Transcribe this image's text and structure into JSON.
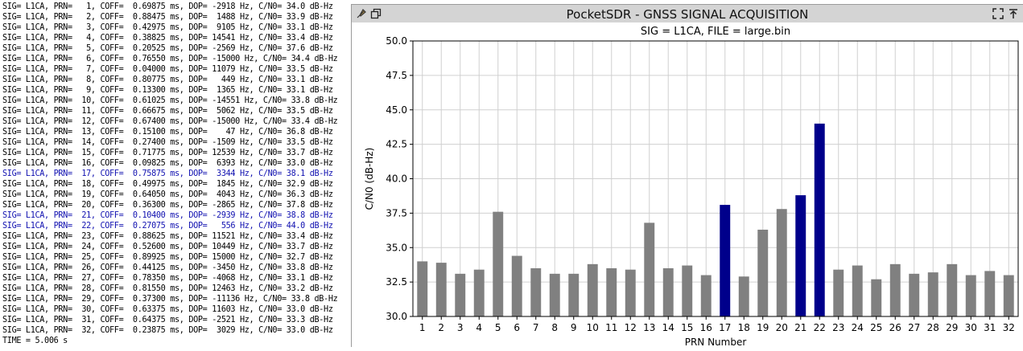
{
  "terminal": {
    "lines": [
      "SIG= L1CA, PRN=   1, COFF=  0.69875 ms, DOP= -2918 Hz, C/N0= 34.0 dB-Hz",
      "SIG= L1CA, PRN=   2, COFF=  0.88475 ms, DOP=  1488 Hz, C/N0= 33.9 dB-Hz",
      "SIG= L1CA, PRN=   3, COFF=  0.42975 ms, DOP=  9105 Hz, C/N0= 33.1 dB-Hz",
      "SIG= L1CA, PRN=   4, COFF=  0.38825 ms, DOP= 14541 Hz, C/N0= 33.4 dB-Hz",
      "SIG= L1CA, PRN=   5, COFF=  0.20525 ms, DOP= -2569 Hz, C/N0= 37.6 dB-Hz",
      "SIG= L1CA, PRN=   6, COFF=  0.76550 ms, DOP= -15000 Hz, C/N0= 34.4 dB-Hz",
      "SIG= L1CA, PRN=   7, COFF=  0.04000 ms, DOP= 11079 Hz, C/N0= 33.5 dB-Hz",
      "SIG= L1CA, PRN=   8, COFF=  0.80775 ms, DOP=   449 Hz, C/N0= 33.1 dB-Hz",
      "SIG= L1CA, PRN=   9, COFF=  0.13300 ms, DOP=  1365 Hz, C/N0= 33.1 dB-Hz",
      "SIG= L1CA, PRN=  10, COFF=  0.61025 ms, DOP= -14551 Hz, C/N0= 33.8 dB-Hz",
      "SIG= L1CA, PRN=  11, COFF=  0.66675 ms, DOP=  5062 Hz, C/N0= 33.5 dB-Hz",
      "SIG= L1CA, PRN=  12, COFF=  0.67400 ms, DOP= -15000 Hz, C/N0= 33.4 dB-Hz",
      "SIG= L1CA, PRN=  13, COFF=  0.15100 ms, DOP=    47 Hz, C/N0= 36.8 dB-Hz",
      "SIG= L1CA, PRN=  14, COFF=  0.27400 ms, DOP= -1509 Hz, C/N0= 33.5 dB-Hz",
      "SIG= L1CA, PRN=  15, COFF=  0.71775 ms, DOP= 12539 Hz, C/N0= 33.7 dB-Hz",
      "SIG= L1CA, PRN=  16, COFF=  0.09825 ms, DOP=  6393 Hz, C/N0= 33.0 dB-Hz",
      "SIG= L1CA, PRN=  17, COFF=  0.75875 ms, DOP=  3344 Hz, C/N0= 38.1 dB-Hz",
      "SIG= L1CA, PRN=  18, COFF=  0.49975 ms, DOP=  1845 Hz, C/N0= 32.9 dB-Hz",
      "SIG= L1CA, PRN=  19, COFF=  0.64050 ms, DOP=  4043 Hz, C/N0= 36.3 dB-Hz",
      "SIG= L1CA, PRN=  20, COFF=  0.36300 ms, DOP= -2865 Hz, C/N0= 37.8 dB-Hz",
      "SIG= L1CA, PRN=  21, COFF=  0.10400 ms, DOP= -2939 Hz, C/N0= 38.8 dB-Hz",
      "SIG= L1CA, PRN=  22, COFF=  0.27075 ms, DOP=   556 Hz, C/N0= 44.0 dB-Hz",
      "SIG= L1CA, PRN=  23, COFF=  0.88625 ms, DOP= 11521 Hz, C/N0= 33.4 dB-Hz",
      "SIG= L1CA, PRN=  24, COFF=  0.52600 ms, DOP= 10449 Hz, C/N0= 33.7 dB-Hz",
      "SIG= L1CA, PRN=  25, COFF=  0.89925 ms, DOP= 15000 Hz, C/N0= 32.7 dB-Hz",
      "SIG= L1CA, PRN=  26, COFF=  0.44125 ms, DOP= -3450 Hz, C/N0= 33.8 dB-Hz",
      "SIG= L1CA, PRN=  27, COFF=  0.78350 ms, DOP= -4068 Hz, C/N0= 33.1 dB-Hz",
      "SIG= L1CA, PRN=  28, COFF=  0.81550 ms, DOP= 12463 Hz, C/N0= 33.2 dB-Hz",
      "SIG= L1CA, PRN=  29, COFF=  0.37300 ms, DOP= -11136 Hz, C/N0= 33.8 dB-Hz",
      "SIG= L1CA, PRN=  30, COFF=  0.63375 ms, DOP= 11603 Hz, C/N0= 33.0 dB-Hz",
      "SIG= L1CA, PRN=  31, COFF=  0.64375 ms, DOP= -2521 Hz, C/N0= 33.3 dB-Hz",
      "SIG= L1CA, PRN=  32, COFF=  0.23875 ms, DOP=  3029 Hz, C/N0= 33.0 dB-Hz",
      "TIME = 5.006 s"
    ],
    "highlighted_indices": [
      16,
      20,
      21
    ],
    "text_color": "#000000",
    "highlight_color": "#1010b0"
  },
  "window": {
    "title": "PocketSDR - GNSS SIGNAL ACQUISITION",
    "left_icons": [
      "feather-icon",
      "restore-icon"
    ],
    "right_icons": [
      "maximize-icon",
      "pin-icon"
    ]
  },
  "chart_data": {
    "type": "bar",
    "title": "SIG = L1CA, FILE = large.bin",
    "xlabel": "PRN Number",
    "ylabel": "C/N0 (dB-Hz)",
    "ylim": [
      30.0,
      50.0
    ],
    "yticks": [
      "30.0",
      "32.5",
      "35.0",
      "37.5",
      "40.0",
      "42.5",
      "45.0",
      "47.5",
      "50.0"
    ],
    "grid": true,
    "categories": [
      "1",
      "2",
      "3",
      "4",
      "5",
      "6",
      "7",
      "8",
      "9",
      "10",
      "11",
      "12",
      "13",
      "14",
      "15",
      "16",
      "17",
      "18",
      "19",
      "20",
      "21",
      "22",
      "23",
      "24",
      "25",
      "26",
      "27",
      "28",
      "29",
      "30",
      "31",
      "32"
    ],
    "values": [
      34.0,
      33.9,
      33.1,
      33.4,
      37.6,
      34.4,
      33.5,
      33.1,
      33.1,
      33.8,
      33.5,
      33.4,
      36.8,
      33.5,
      33.7,
      33.0,
      38.1,
      32.9,
      36.3,
      37.8,
      38.8,
      44.0,
      33.4,
      33.7,
      32.7,
      33.8,
      33.1,
      33.2,
      33.8,
      33.0,
      33.3,
      33.0
    ],
    "acquired": [
      "17",
      "21",
      "22"
    ],
    "colors": {
      "default": "#808080",
      "acquired": "#00008b",
      "grid": "#d0d0d0"
    }
  }
}
